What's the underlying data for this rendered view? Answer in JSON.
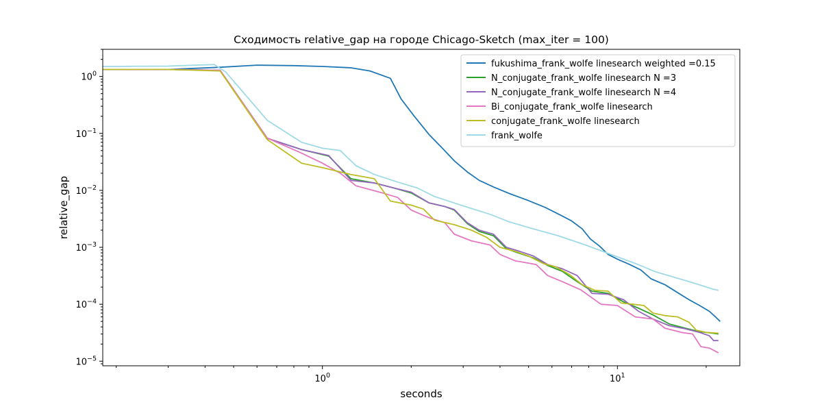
{
  "chart_data": {
    "type": "line",
    "title": "Сходимость relative_gap на городе Chicago-Sketch  (max_iter = 100)",
    "xlabel": "seconds",
    "ylabel": "relative_gap",
    "xscale": "log",
    "yscale": "log",
    "xlim": [
      0.18,
      26
    ],
    "ylim": [
      8.3e-06,
      3.0
    ],
    "grid": false,
    "legend_position": "top-right",
    "x_ticks": [
      {
        "value": 1,
        "base": "10",
        "exp": "0"
      },
      {
        "value": 10,
        "base": "10",
        "exp": "1"
      }
    ],
    "y_ticks": [
      {
        "value": 1e-05,
        "base": "10",
        "exp": "−5"
      },
      {
        "value": 0.0001,
        "base": "10",
        "exp": "−4"
      },
      {
        "value": 0.001,
        "base": "10",
        "exp": "−3"
      },
      {
        "value": 0.01,
        "base": "10",
        "exp": "−2"
      },
      {
        "value": 0.1,
        "base": "10",
        "exp": "−1"
      },
      {
        "value": 1,
        "base": "10",
        "exp": "0"
      }
    ],
    "series": [
      {
        "name": "fukushima_frank_wolfe linesearch weighted =0.15",
        "color": "#1f77b4",
        "points": [
          [
            0.18,
            1.33
          ],
          [
            0.3,
            1.33
          ],
          [
            0.45,
            1.45
          ],
          [
            0.6,
            1.58
          ],
          [
            0.8,
            1.55
          ],
          [
            1.0,
            1.5
          ],
          [
            1.25,
            1.42
          ],
          [
            1.45,
            1.25
          ],
          [
            1.7,
            0.93
          ],
          [
            1.85,
            0.4
          ],
          [
            2.05,
            0.2
          ],
          [
            2.3,
            0.095
          ],
          [
            2.55,
            0.055
          ],
          [
            2.8,
            0.033
          ],
          [
            3.1,
            0.021
          ],
          [
            3.4,
            0.015
          ],
          [
            3.8,
            0.0115
          ],
          [
            4.3,
            0.0088
          ],
          [
            5.0,
            0.0066
          ],
          [
            5.7,
            0.005
          ],
          [
            6.4,
            0.0037
          ],
          [
            7.0,
            0.0029
          ],
          [
            7.6,
            0.0021
          ],
          [
            8.1,
            0.0014
          ],
          [
            8.7,
            0.00105
          ],
          [
            9.3,
            0.00075
          ],
          [
            10.0,
            0.00062
          ],
          [
            11.0,
            0.0005
          ],
          [
            12.0,
            0.0004
          ],
          [
            13.0,
            0.00028
          ],
          [
            14.5,
            0.00022
          ],
          [
            16.0,
            0.00016
          ],
          [
            17.5,
            0.00012
          ],
          [
            19.0,
            9.5e-05
          ],
          [
            20.5,
            7.5e-05
          ],
          [
            21.5,
            6e-05
          ],
          [
            22.3,
            5e-05
          ]
        ]
      },
      {
        "name": "N_conjugate_frank_wolfe linesearch N =3",
        "color": "#2ca02c",
        "points": [
          [
            0.18,
            1.33
          ],
          [
            0.3,
            1.33
          ],
          [
            0.45,
            1.28
          ],
          [
            0.65,
            0.082
          ],
          [
            0.85,
            0.052
          ],
          [
            1.05,
            0.04
          ],
          [
            1.25,
            0.016
          ],
          [
            1.5,
            0.0135
          ],
          [
            1.75,
            0.011
          ],
          [
            2.0,
            0.009
          ],
          [
            2.3,
            0.006
          ],
          [
            2.6,
            0.0052
          ],
          [
            2.8,
            0.0045
          ],
          [
            3.1,
            0.0026
          ],
          [
            3.4,
            0.0019
          ],
          [
            3.8,
            0.0016
          ],
          [
            4.2,
            0.00095
          ],
          [
            4.6,
            0.0008
          ],
          [
            5.2,
            0.00065
          ],
          [
            5.8,
            0.00048
          ],
          [
            6.5,
            0.00038
          ],
          [
            7.3,
            0.00025
          ],
          [
            8.2,
            0.00017
          ],
          [
            9.3,
            0.000155
          ],
          [
            10.5,
            0.00011
          ],
          [
            11.8,
            8.5e-05
          ],
          [
            13.2,
            6.5e-05
          ],
          [
            15.0,
            4.5e-05
          ],
          [
            17.0,
            3.8e-05
          ],
          [
            19.0,
            3.3e-05
          ],
          [
            21.0,
            3.1e-05
          ],
          [
            22.0,
            3e-05
          ]
        ]
      },
      {
        "name": "N_conjugate_frank_wolfe linesearch N =4",
        "color": "#9467bd",
        "points": [
          [
            0.18,
            1.33
          ],
          [
            0.3,
            1.33
          ],
          [
            0.45,
            1.28
          ],
          [
            0.65,
            0.082
          ],
          [
            0.85,
            0.052
          ],
          [
            1.05,
            0.041
          ],
          [
            1.25,
            0.015
          ],
          [
            1.5,
            0.0135
          ],
          [
            1.75,
            0.011
          ],
          [
            2.0,
            0.0093
          ],
          [
            2.3,
            0.006
          ],
          [
            2.6,
            0.0052
          ],
          [
            2.8,
            0.0046
          ],
          [
            3.1,
            0.0027
          ],
          [
            3.4,
            0.002
          ],
          [
            3.8,
            0.0017
          ],
          [
            4.2,
            0.001
          ],
          [
            4.6,
            0.00087
          ],
          [
            5.2,
            0.0007
          ],
          [
            5.8,
            0.0005
          ],
          [
            6.5,
            0.00042
          ],
          [
            7.3,
            0.00032
          ],
          [
            8.2,
            0.000155
          ],
          [
            9.3,
            0.00015
          ],
          [
            10.5,
            0.00012
          ],
          [
            11.8,
            7.5e-05
          ],
          [
            13.2,
            5.5e-05
          ],
          [
            15.0,
            4.2e-05
          ],
          [
            17.0,
            3.7e-05
          ],
          [
            19.0,
            3.2e-05
          ],
          [
            20.5,
            2.8e-05
          ],
          [
            21.2,
            2.3e-05
          ],
          [
            22.0,
            2.3e-05
          ]
        ]
      },
      {
        "name": "Bi_conjugate_frank_wolfe linesearch",
        "color": "#e377c2",
        "points": [
          [
            0.18,
            1.33
          ],
          [
            0.3,
            1.33
          ],
          [
            0.45,
            1.28
          ],
          [
            0.65,
            0.083
          ],
          [
            0.85,
            0.045
          ],
          [
            1.0,
            0.03
          ],
          [
            1.15,
            0.02
          ],
          [
            1.3,
            0.012
          ],
          [
            1.6,
            0.009
          ],
          [
            1.8,
            0.0075
          ],
          [
            2.0,
            0.0045
          ],
          [
            2.3,
            0.0033
          ],
          [
            2.6,
            0.0027
          ],
          [
            2.8,
            0.0017
          ],
          [
            3.2,
            0.0013
          ],
          [
            3.7,
            0.0011
          ],
          [
            4.0,
            0.00075
          ],
          [
            4.5,
            0.00058
          ],
          [
            5.3,
            0.0005
          ],
          [
            5.8,
            0.00032
          ],
          [
            6.5,
            0.00025
          ],
          [
            7.5,
            0.00018
          ],
          [
            8.8,
            0.0001
          ],
          [
            10.0,
            9.5e-05
          ],
          [
            11.5,
            6e-05
          ],
          [
            13.2,
            5.5e-05
          ],
          [
            14.5,
            3.8e-05
          ],
          [
            16.5,
            3.2e-05
          ],
          [
            18.0,
            3e-05
          ],
          [
            19.2,
            1.8e-05
          ],
          [
            20.5,
            1.7e-05
          ],
          [
            22.0,
            1.4e-05
          ]
        ]
      },
      {
        "name": "conjugate_frank_wolfe linesearch",
        "color": "#bcbd22",
        "points": [
          [
            0.18,
            1.33
          ],
          [
            0.3,
            1.33
          ],
          [
            0.45,
            1.25
          ],
          [
            0.65,
            0.078
          ],
          [
            0.85,
            0.03
          ],
          [
            1.0,
            0.025
          ],
          [
            1.25,
            0.019
          ],
          [
            1.5,
            0.016
          ],
          [
            1.7,
            0.0065
          ],
          [
            2.0,
            0.0055
          ],
          [
            2.2,
            0.0047
          ],
          [
            2.4,
            0.003
          ],
          [
            2.8,
            0.0025
          ],
          [
            3.2,
            0.002
          ],
          [
            3.6,
            0.0015
          ],
          [
            4.0,
            0.001
          ],
          [
            4.5,
            0.00085
          ],
          [
            5.0,
            0.0007
          ],
          [
            5.6,
            0.00052
          ],
          [
            6.2,
            0.00045
          ],
          [
            6.9,
            0.00033
          ],
          [
            7.6,
            0.00022
          ],
          [
            8.4,
            0.000175
          ],
          [
            9.3,
            0.00017
          ],
          [
            10.3,
            0.000105
          ],
          [
            11.3,
            0.0001
          ],
          [
            12.3,
            9.5e-05
          ],
          [
            13.2,
            7e-05
          ],
          [
            14.5,
            6.3e-05
          ],
          [
            16.0,
            6e-05
          ],
          [
            17.5,
            4.8e-05
          ],
          [
            18.5,
            3.5e-05
          ],
          [
            20.0,
            3.2e-05
          ],
          [
            22.0,
            3.1e-05
          ]
        ]
      },
      {
        "name": "frank_wolfe",
        "color": "#9edae5",
        "points": [
          [
            0.18,
            1.5
          ],
          [
            0.3,
            1.52
          ],
          [
            0.43,
            1.62
          ],
          [
            0.47,
            1.2
          ],
          [
            0.65,
            0.17
          ],
          [
            0.85,
            0.07
          ],
          [
            1.0,
            0.055
          ],
          [
            1.15,
            0.05
          ],
          [
            1.3,
            0.027
          ],
          [
            1.5,
            0.019
          ],
          [
            1.8,
            0.014
          ],
          [
            2.1,
            0.011
          ],
          [
            2.4,
            0.0078
          ],
          [
            2.8,
            0.006
          ],
          [
            3.2,
            0.0048
          ],
          [
            3.7,
            0.0038
          ],
          [
            4.3,
            0.0028
          ],
          [
            5.2,
            0.0021
          ],
          [
            6.3,
            0.0016
          ],
          [
            7.8,
            0.0011
          ],
          [
            9.5,
            0.00075
          ],
          [
            11.5,
            0.00052
          ],
          [
            13.5,
            0.00037
          ],
          [
            15.5,
            0.0003
          ],
          [
            17.5,
            0.00025
          ],
          [
            19.5,
            0.00021
          ],
          [
            21.0,
            0.000185
          ],
          [
            22.0,
            0.000175
          ]
        ]
      }
    ]
  }
}
